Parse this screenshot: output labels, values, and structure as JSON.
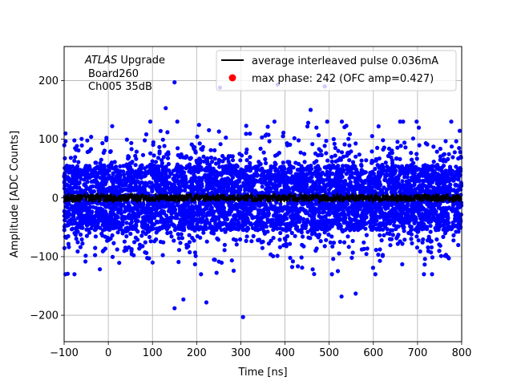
{
  "chart_data": {
    "type": "scatter",
    "xlabel": "Time [ns]",
    "ylabel": "Amplitude [ADC Counts]",
    "xlim": [
      -100,
      800
    ],
    "ylim": [
      -245,
      258
    ],
    "xticks": [
      -100,
      0,
      100,
      200,
      300,
      400,
      500,
      600,
      700,
      800
    ],
    "yticks": [
      -200,
      -100,
      0,
      100,
      200
    ],
    "xtick_labels": [
      "−100",
      "0",
      "100",
      "200",
      "300",
      "400",
      "500",
      "600",
      "700",
      "800"
    ],
    "ytick_labels": [
      "−200",
      "−100",
      "0",
      "100",
      "200"
    ],
    "grid": true,
    "legend_position": "top-right",
    "annotation": {
      "line1_italic": "ATLAS",
      "line1_rest": " Upgrade",
      "line2": "Board260",
      "line3": "Ch005 35dB"
    },
    "series": [
      {
        "name": "average interleaved pulse 0.036mA",
        "kind": "line",
        "color": "#000000",
        "x_range": [
          -100,
          800
        ],
        "level": 0,
        "noise_amplitude": 7
      },
      {
        "name": "max phase: 242 (OFC amp=0.427)",
        "kind": "legend-marker",
        "color": "#ff0000"
      },
      {
        "name": "",
        "kind": "scatter",
        "color": "#0000ff",
        "x_range": [
          -100,
          800
        ],
        "core_band": [
          -55,
          55
        ],
        "typical_extent": [
          -130,
          130
        ],
        "notable_points": [
          {
            "x": 150,
            "y": 197
          },
          {
            "x": 253,
            "y": 188
          },
          {
            "x": 383,
            "y": 193
          },
          {
            "x": 490,
            "y": 190
          },
          {
            "x": 130,
            "y": 153
          },
          {
            "x": 458,
            "y": 150
          },
          {
            "x": 305,
            "y": -203
          },
          {
            "x": 150,
            "y": -188
          },
          {
            "x": 222,
            "y": -178
          },
          {
            "x": 528,
            "y": -168
          },
          {
            "x": 560,
            "y": -163
          },
          {
            "x": 170,
            "y": -173
          }
        ]
      }
    ]
  }
}
